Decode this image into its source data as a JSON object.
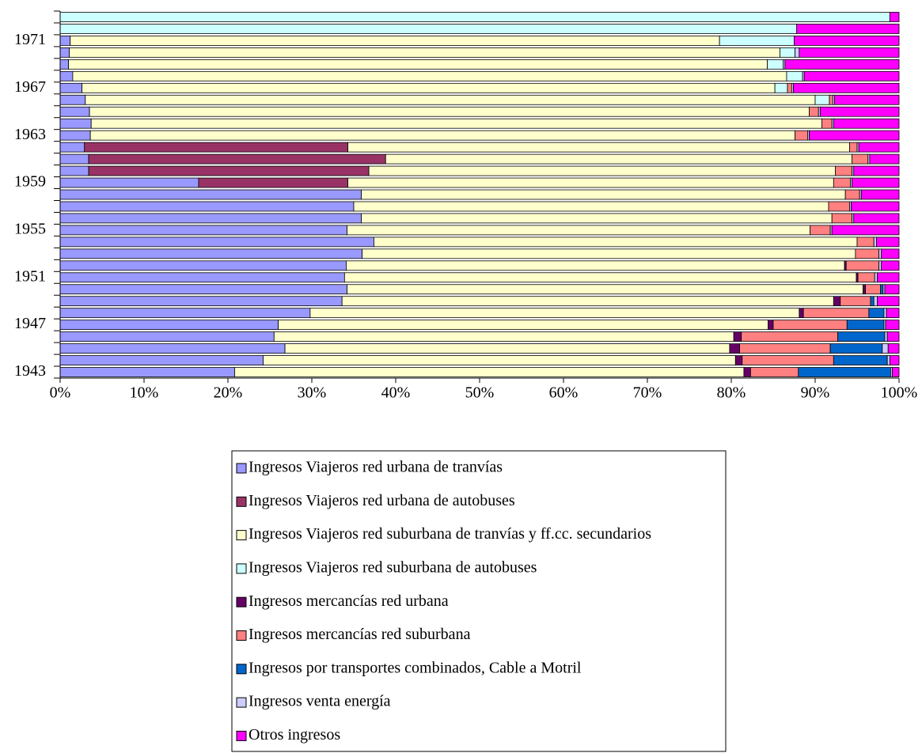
{
  "chart_data": {
    "type": "stacked_barh",
    "categories": [
      "1943",
      null,
      null,
      null,
      "1947",
      null,
      null,
      null,
      "1951",
      null,
      null,
      null,
      "1955",
      null,
      null,
      null,
      "1959",
      null,
      null,
      null,
      "1963",
      null,
      null,
      null,
      "1967",
      null,
      null,
      null,
      "1971",
      null,
      null
    ],
    "series": [
      {
        "name": "Ingresos Viajeros red urbana de tranvías",
        "color": "#9999ff",
        "values": [
          20.8,
          24.2,
          26.8,
          25.5,
          26,
          29.8,
          33.6,
          34.2,
          33.9,
          34.1,
          36,
          37.4,
          34.2,
          35.9,
          35,
          35.9,
          16.5,
          3.4,
          3.4,
          2.9,
          3.6,
          3.7,
          3.5,
          3,
          2.6,
          1.5,
          1,
          1.1,
          1.2,
          0,
          0
        ]
      },
      {
        "name": "Ingresos Viajeros red urbana de autobuses",
        "color": "#993366",
        "values": [
          0,
          0,
          0,
          0,
          0,
          0,
          0,
          0,
          0,
          0,
          0,
          0,
          0,
          0,
          0,
          0,
          17.8,
          33.4,
          35.4,
          31.4,
          0,
          0,
          0,
          0,
          0,
          0,
          0,
          0,
          0,
          0,
          0
        ]
      },
      {
        "name": "Ingresos Viajeros red suburbana de tranvías y ff.cc. secundarios",
        "color": "#ffffcc",
        "values": [
          60.7,
          56.3,
          53,
          54.8,
          58.4,
          58.3,
          58.6,
          61.5,
          61,
          59.4,
          58.8,
          57.6,
          55.2,
          56.1,
          56.6,
          57.7,
          57.9,
          55.6,
          55.6,
          59.8,
          84,
          87.1,
          85.8,
          87,
          82.6,
          85.1,
          83.3,
          84.7,
          77.4,
          0,
          0
        ]
      },
      {
        "name": "Ingresos Viajeros red suburbana de autobuses",
        "color": "#ccffff",
        "values": [
          0,
          0,
          0,
          0,
          0,
          0,
          0,
          0,
          0,
          0,
          0,
          0,
          0,
          0,
          0,
          0,
          0,
          0,
          0,
          0,
          0,
          0,
          0,
          1.7,
          1.5,
          1.9,
          1.9,
          1.8,
          8.9,
          87.8,
          98.9
        ]
      },
      {
        "name": "Ingresos mercancías red urbana",
        "color": "#660066",
        "values": [
          0.8,
          0.8,
          1.2,
          0.9,
          0.6,
          0.5,
          0.8,
          0.3,
          0.2,
          0.2,
          0,
          0,
          0,
          0,
          0,
          0,
          0,
          0,
          0,
          0,
          0,
          0,
          0,
          0,
          0,
          0,
          0,
          0,
          0,
          0,
          0
        ]
      },
      {
        "name": "Ingresos mercancías red suburbana",
        "color": "#ff8080",
        "values": [
          5.7,
          10.9,
          10.8,
          11.5,
          8.8,
          7.8,
          3.6,
          1.8,
          2,
          3.9,
          2.8,
          2,
          2.4,
          2.4,
          2.5,
          1.7,
          2,
          2,
          1.9,
          0.9,
          1.5,
          1.2,
          1.1,
          0.4,
          0.5,
          0,
          0,
          0,
          0,
          0,
          0
        ]
      },
      {
        "name": "Ingresos por transportes combinados, Cable a Motril",
        "color": "#0066cc",
        "values": [
          11,
          6.4,
          6.2,
          5.6,
          4.4,
          1.8,
          0.4,
          0.3,
          0,
          0,
          0,
          0,
          0,
          0,
          0,
          0,
          0,
          0,
          0,
          0,
          0,
          0,
          0,
          0,
          0,
          0,
          0,
          0,
          0,
          0,
          0
        ]
      },
      {
        "name": "Ingresos venta energía",
        "color": "#ccccff",
        "values": [
          0.2,
          0.3,
          0.7,
          0.3,
          0.2,
          0.3,
          0.4,
          0.2,
          0.3,
          0.3,
          0.3,
          0.3,
          0.2,
          0.2,
          0.2,
          0.2,
          0.2,
          0.2,
          0.2,
          0.2,
          0.2,
          0.2,
          0.2,
          0.2,
          0.2,
          0.2,
          0.2,
          0.5,
          0,
          0,
          0
        ]
      },
      {
        "name": "Otros ingresos",
        "color": "#ff00ff",
        "values": [
          0.8,
          1.1,
          1.3,
          1.4,
          1.6,
          1.5,
          2.6,
          1.7,
          2.6,
          2.1,
          2.1,
          2.7,
          8,
          5.4,
          5.7,
          4.5,
          5.6,
          5.4,
          3.5,
          4.8,
          10.7,
          7.8,
          9.4,
          7.7,
          12.6,
          11.3,
          13.6,
          11.9,
          12.5,
          12.2,
          1.1
        ]
      }
    ],
    "xlim": [
      0,
      100
    ],
    "xticks": [
      {
        "value": 0,
        "label": "0%"
      },
      {
        "value": 10,
        "label": "10%"
      },
      {
        "value": 20,
        "label": "20%"
      },
      {
        "value": 30,
        "label": "30%"
      },
      {
        "value": 40,
        "label": "40%"
      },
      {
        "value": 50,
        "label": "50%"
      },
      {
        "value": 60,
        "label": "60%"
      },
      {
        "value": 70,
        "label": "70%"
      },
      {
        "value": 80,
        "label": "80%"
      },
      {
        "value": 90,
        "label": "90%"
      },
      {
        "value": 100,
        "label": "100%"
      }
    ],
    "legend": "bottom"
  }
}
